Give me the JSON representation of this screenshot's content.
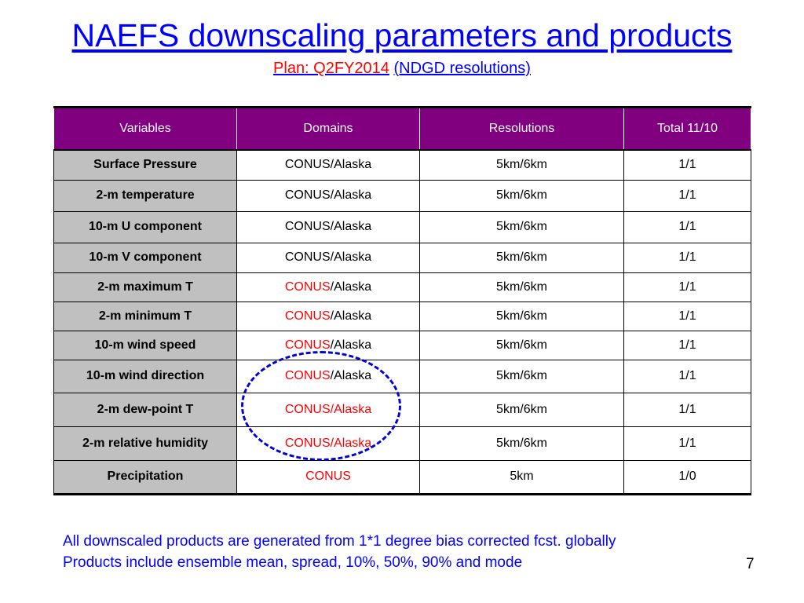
{
  "title": "NAEFS downscaling parameters and products",
  "subtitle": {
    "plan": "Plan: Q2FY2014",
    "resolution": "(NDGD resolutions)"
  },
  "table": {
    "headers": [
      "Variables",
      "Domains",
      "Resolutions",
      "Total 11/10"
    ],
    "rows": [
      {
        "variable": "Surface Pressure",
        "domain_a": "CONUS",
        "domain_b": "/Alaska",
        "domain_a_red": false,
        "domain_b_red": false,
        "resolution": "5km/6km",
        "total": "1/1"
      },
      {
        "variable": "2-m temperature",
        "domain_a": "CONUS",
        "domain_b": "/Alaska",
        "domain_a_red": false,
        "domain_b_red": false,
        "resolution": "5km/6km",
        "total": "1/1"
      },
      {
        "variable": "10-m U component",
        "domain_a": "CONUS",
        "domain_b": "/Alaska",
        "domain_a_red": false,
        "domain_b_red": false,
        "resolution": "5km/6km",
        "total": "1/1"
      },
      {
        "variable": "10-m V component",
        "domain_a": "CONUS",
        "domain_b": "/Alaska",
        "domain_a_red": false,
        "domain_b_red": false,
        "resolution": "5km/6km",
        "total": "1/1"
      },
      {
        "variable": "2-m maximum T",
        "domain_a": "CONUS",
        "domain_b": "/Alaska",
        "domain_a_red": true,
        "domain_b_red": false,
        "resolution": "5km/6km",
        "total": "1/1"
      },
      {
        "variable": "2-m minimum T",
        "domain_a": "CONUS",
        "domain_b": "/Alaska",
        "domain_a_red": true,
        "domain_b_red": false,
        "resolution": "5km/6km",
        "total": "1/1"
      },
      {
        "variable": "10-m wind speed",
        "domain_a": "CONUS",
        "domain_b": "/Alaska",
        "domain_a_red": true,
        "domain_b_red": false,
        "resolution": "5km/6km",
        "total": "1/1"
      },
      {
        "variable": "10-m wind direction",
        "domain_a": "CONUS",
        "domain_b": "/Alaska",
        "domain_a_red": true,
        "domain_b_red": false,
        "resolution": "5km/6km",
        "total": "1/1"
      },
      {
        "variable": "2-m dew-point T",
        "domain_a": "CONUS",
        "domain_b": "/Alaska",
        "domain_a_red": true,
        "domain_b_red": true,
        "resolution": "5km/6km",
        "total": "1/1"
      },
      {
        "variable": "2-m relative humidity",
        "domain_a": "CONUS",
        "domain_b": "/Alaska",
        "domain_a_red": true,
        "domain_b_red": true,
        "resolution": "5km/6km",
        "total": "1/1"
      },
      {
        "variable": "Precipitation",
        "domain_a": "CONUS",
        "domain_b": "",
        "domain_a_red": true,
        "domain_b_red": false,
        "resolution": "5km",
        "total": "1/0"
      }
    ]
  },
  "notes": [
    "All downscaled products are generated from 1*1 degree bias corrected fcst. globally",
    "Products include ensemble mean, spread, 10%, 50%, 90% and mode"
  ],
  "page_number": "7",
  "colors": {
    "title": "#0000ff",
    "header_bg": "#800080",
    "variable_bg": "#c0c0c0",
    "highlight": "#ff0000",
    "annotation_oval": "#0000dd"
  }
}
